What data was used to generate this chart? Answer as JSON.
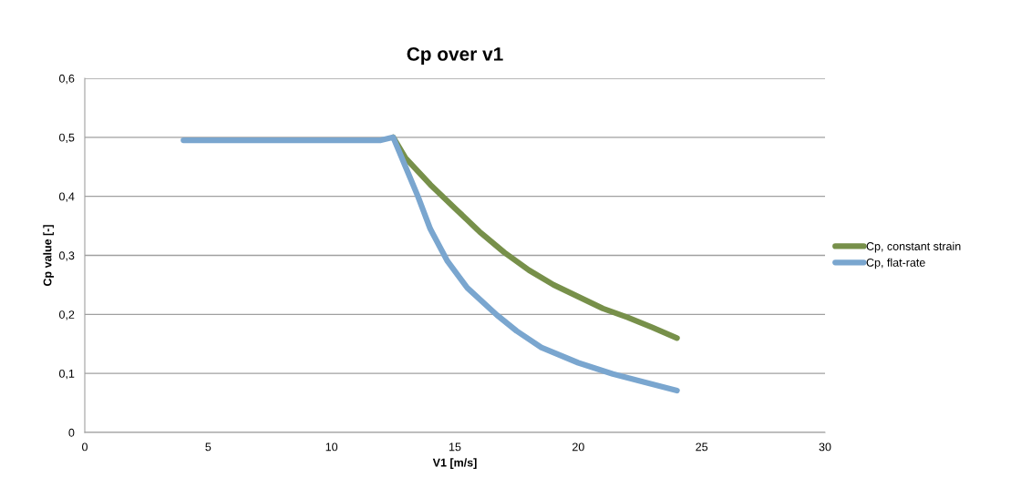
{
  "chart_data": {
    "type": "line",
    "title": "Cp over v1",
    "xlabel": "V1 [m/s]",
    "ylabel": "Cp value [-]",
    "xlim": [
      0,
      30
    ],
    "xticks": [
      0,
      5,
      10,
      15,
      20,
      25,
      30
    ],
    "ylim": [
      0,
      0.6
    ],
    "yticks": [
      {
        "value": 0,
        "label": "0"
      },
      {
        "value": 0.1,
        "label": "0,1"
      },
      {
        "value": 0.2,
        "label": "0,2"
      },
      {
        "value": 0.3,
        "label": "0,3"
      },
      {
        "value": 0.4,
        "label": "0,4"
      },
      {
        "value": 0.5,
        "label": "0,5"
      },
      {
        "value": 0.6,
        "label": "0,6"
      }
    ],
    "grid": "y",
    "legend": "right",
    "line_style": "solid",
    "series": [
      {
        "name": "Cp, constant strain",
        "color": "#77904a",
        "x": [
          12.5,
          13,
          14,
          15,
          16,
          17,
          18,
          19,
          20,
          21,
          22,
          23,
          24
        ],
        "values": [
          0.5,
          0.465,
          0.42,
          0.38,
          0.34,
          0.305,
          0.275,
          0.25,
          0.23,
          0.21,
          0.195,
          0.178,
          0.16
        ]
      },
      {
        "name": "Cp, flat-rate",
        "color": "#7aa6cf",
        "x": [
          4,
          12,
          12.5,
          13,
          13.5,
          14,
          14.7,
          15.5,
          16.7,
          17.5,
          18.5,
          20,
          21.4,
          22.5,
          24
        ],
        "values": [
          0.495,
          0.495,
          0.5,
          0.45,
          0.4,
          0.345,
          0.29,
          0.245,
          0.199,
          0.172,
          0.144,
          0.118,
          0.099,
          0.087,
          0.071
        ]
      }
    ]
  }
}
